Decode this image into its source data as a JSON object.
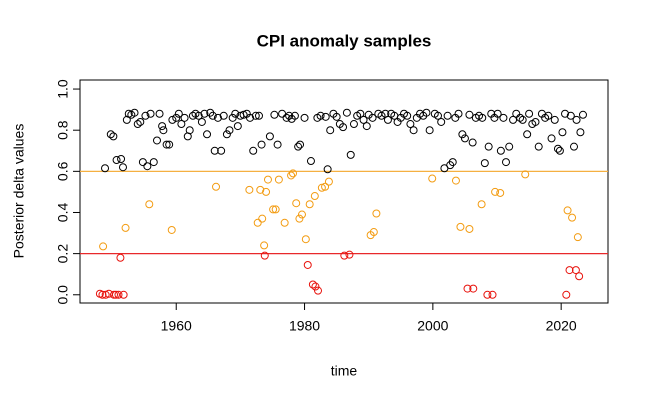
{
  "chart_data": {
    "type": "scatter",
    "title": "CPI anomaly samples",
    "x_label": "time",
    "y_label": "Posterior delta values",
    "xlim": [
      1945,
      2027.3
    ],
    "ylim": [
      -0.04,
      1.044
    ],
    "xticks": [
      1960,
      1980,
      2000,
      2020
    ],
    "yticks": [
      {
        "value": 0,
        "label": "0.0"
      },
      0.2,
      0.4,
      0.6,
      0.8,
      {
        "value": 1,
        "label": "1.0"
      }
    ],
    "hlines": [
      {
        "value": 0.6,
        "color": "#f5b041"
      },
      {
        "value": 0.2,
        "color": "#e8292b"
      }
    ],
    "series": [
      {
        "color": "#000000",
        "x": [
          1948.9,
          1949.8,
          1950.2,
          1950.7,
          1951.4,
          1951.7,
          1952.3,
          1952.6,
          1953,
          1953.5,
          1954,
          1954.4,
          1954.8,
          1955.2,
          1955.5,
          1956,
          1956.5,
          1957,
          1957.4,
          1957.8,
          1958,
          1958.5,
          1958.9,
          1959.4,
          1960,
          1960.4,
          1960.8,
          1961.3,
          1961.8,
          1962.1,
          1962.6,
          1963,
          1963.5,
          1964,
          1964.4,
          1964.8,
          1965.3,
          1965.7,
          1966,
          1966.5,
          1967,
          1967.4,
          1967.9,
          1968.3,
          1968.8,
          1969.2,
          1969.6,
          1970,
          1970.5,
          1971,
          1971.5,
          1972,
          1972.4,
          1972.9,
          1973.3,
          1974.6,
          1975.3,
          1975.8,
          1976.5,
          1977.2,
          1977.6,
          1978,
          1978.5,
          1979,
          1979.3,
          1980,
          1981,
          1982,
          1982.5,
          1983.3,
          1983.6,
          1984,
          1984.5,
          1985,
          1985.5,
          1986,
          1986.6,
          1987.2,
          1987.7,
          1988.2,
          1988.7,
          1989.2,
          1989.7,
          1990,
          1990.6,
          1991.5,
          1992,
          1992.6,
          1993,
          1993.5,
          1994,
          1994.5,
          1995,
          1995.5,
          1996,
          1996.5,
          1997,
          1997.5,
          1998,
          1998.5,
          1999,
          1999.5,
          2000.3,
          2000.8,
          2001.3,
          2001.8,
          2002.3,
          2002.7,
          2003.1,
          2003.5,
          2004,
          2004.6,
          2005,
          2005.7,
          2006.2,
          2006.7,
          2007.2,
          2007.7,
          2008.1,
          2008.7,
          2009.1,
          2009.6,
          2010.1,
          2010.6,
          2011,
          2011.4,
          2011.9,
          2012.5,
          2013,
          2013.6,
          2014,
          2014.7,
          2015,
          2015.5,
          2016,
          2016.5,
          2017,
          2017.5,
          2018,
          2018.5,
          2019,
          2019.5,
          2019.8,
          2020.2,
          2020.6,
          2021.5,
          2022,
          2022.4,
          2023,
          2023.4
        ],
        "values": [
          0.615,
          0.78,
          0.77,
          0.655,
          0.66,
          0.62,
          0.85,
          0.88,
          0.875,
          0.885,
          0.83,
          0.84,
          0.645,
          0.87,
          0.625,
          0.88,
          0.645,
          0.75,
          0.88,
          0.82,
          0.8,
          0.73,
          0.73,
          0.85,
          0.86,
          0.88,
          0.83,
          0.86,
          0.77,
          0.8,
          0.87,
          0.88,
          0.87,
          0.84,
          0.88,
          0.78,
          0.885,
          0.87,
          0.7,
          0.86,
          0.7,
          0.87,
          0.78,
          0.8,
          0.86,
          0.88,
          0.82,
          0.87,
          0.875,
          0.88,
          0.86,
          0.7,
          0.87,
          0.87,
          0.73,
          0.77,
          0.875,
          0.73,
          0.88,
          0.86,
          0.87,
          0.855,
          0.87,
          0.72,
          0.73,
          0.86,
          0.65,
          0.86,
          0.87,
          0.865,
          0.61,
          0.8,
          0.88,
          0.865,
          0.83,
          0.815,
          0.885,
          0.68,
          0.83,
          0.87,
          0.88,
          0.85,
          0.82,
          0.875,
          0.86,
          0.88,
          0.87,
          0.88,
          0.85,
          0.88,
          0.87,
          0.84,
          0.86,
          0.88,
          0.87,
          0.83,
          0.8,
          0.86,
          0.88,
          0.87,
          0.885,
          0.8,
          0.88,
          0.87,
          0.84,
          0.615,
          0.87,
          0.63,
          0.645,
          0.86,
          0.88,
          0.78,
          0.76,
          0.875,
          0.74,
          0.86,
          0.87,
          0.86,
          0.64,
          0.72,
          0.88,
          0.86,
          0.88,
          0.7,
          0.86,
          0.645,
          0.72,
          0.85,
          0.88,
          0.86,
          0.85,
          0.78,
          0.88,
          0.83,
          0.84,
          0.72,
          0.88,
          0.86,
          0.87,
          0.76,
          0.85,
          0.71,
          0.7,
          0.79,
          0.88,
          0.87,
          0.72,
          0.85,
          0.79,
          0.875
        ]
      },
      {
        "color": "#f39c12",
        "x": [
          1948.6,
          1952.1,
          1955.8,
          1959.3,
          1966.2,
          1971.4,
          1972.7,
          1973.1,
          1973.4,
          1973.7,
          1974,
          1974.3,
          1975.1,
          1975.5,
          1976,
          1976.9,
          1977.9,
          1978.2,
          1978.7,
          1979.2,
          1979.6,
          1980.2,
          1980.8,
          1981.6,
          1982.7,
          1983.2,
          1983.8,
          1990.3,
          1990.8,
          1991.2,
          1999.9,
          2003.6,
          2004.3,
          2005.7,
          2007.6,
          2009.7,
          2010.5,
          2014.4,
          2021,
          2021.7,
          2022.6
        ],
        "values": [
          0.235,
          0.325,
          0.44,
          0.315,
          0.525,
          0.51,
          0.35,
          0.51,
          0.37,
          0.24,
          0.5,
          0.56,
          0.415,
          0.415,
          0.56,
          0.35,
          0.58,
          0.59,
          0.445,
          0.37,
          0.39,
          0.27,
          0.44,
          0.48,
          0.52,
          0.525,
          0.55,
          0.29,
          0.305,
          0.395,
          0.565,
          0.555,
          0.33,
          0.32,
          0.44,
          0.5,
          0.495,
          0.585,
          0.41,
          0.375,
          0.28
        ]
      },
      {
        "color": "#e8120c",
        "x": [
          1948.1,
          1948.5,
          1949,
          1949.5,
          1950.3,
          1950.6,
          1951,
          1951.3,
          1951.8,
          1973.8,
          1980.5,
          1981.3,
          1981.7,
          1982.1,
          1986.2,
          1987,
          2005.4,
          2006.3,
          2008.5,
          2009.3,
          2020.8,
          2021.3,
          2022.3,
          2022.8
        ],
        "values": [
          0.005,
          0,
          0,
          0.005,
          0,
          0,
          0,
          0.18,
          0,
          0.19,
          0.145,
          0.05,
          0.04,
          0.02,
          0.19,
          0.195,
          0.03,
          0.03,
          0,
          0,
          0,
          0.12,
          0.12,
          0.09
        ]
      }
    ]
  }
}
